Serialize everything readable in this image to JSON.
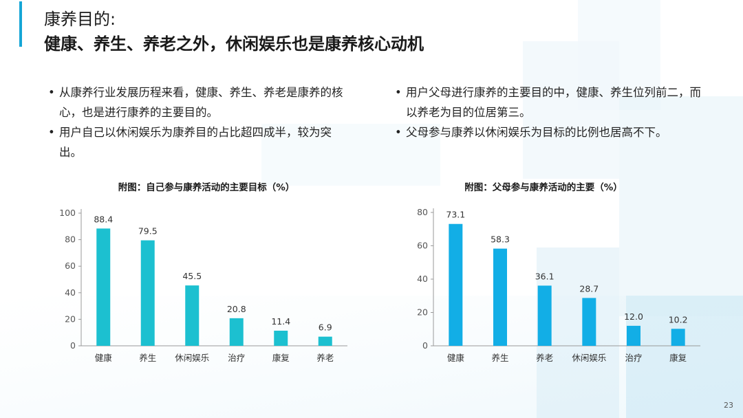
{
  "title": {
    "line1": "康养目的:",
    "line2": "健康、养生、养老之外，休闲娱乐也是康养核心动机"
  },
  "bullets_left": [
    "从康养行业发展历程来看，健康、养生、养老是康养的核心，也是进行康养的主要目的。",
    "用户自己以休闲娱乐为康养目的占比超四成半，较为突出。"
  ],
  "bullets_right": [
    "用户父母进行康养的主要目的中，健康、养生位列前二，而以养老为目的位居第三。",
    "父母参与康养以休闲娱乐为目标的比例也居高不下。"
  ],
  "page_number": "23",
  "colors": {
    "accent": "#16a6d6",
    "bar_left": "#1cc0d0",
    "bar_right": "#12aee6",
    "axis": "#999999"
  },
  "chart_data": [
    {
      "type": "bar",
      "title": "附图：自己参与康养活动的主要目标（%）",
      "categories": [
        "健康",
        "养生",
        "休闲娱乐",
        "治疗",
        "康复",
        "养老"
      ],
      "values": [
        88.4,
        79.5,
        45.5,
        20.8,
        11.4,
        6.9
      ],
      "value_labels": [
        "88.4",
        "79.5",
        "45.5",
        "20.8",
        "11.4",
        "6.9"
      ],
      "yticks": [
        0,
        20,
        40,
        60,
        80,
        100
      ],
      "ylim": [
        0,
        100
      ],
      "xlabel": "",
      "ylabel": "",
      "grid": false
    },
    {
      "type": "bar",
      "title": "附图：父母参与康养活动的主要（%）",
      "categories": [
        "健康",
        "养生",
        "养老",
        "休闲娱乐",
        "治疗",
        "康复"
      ],
      "values": [
        73.1,
        58.3,
        36.1,
        28.7,
        12.0,
        10.2
      ],
      "value_labels": [
        "73.1",
        "58.3",
        "36.1",
        "28.7",
        "12.0",
        "10.2"
      ],
      "yticks": [
        0,
        20,
        40,
        60,
        80
      ],
      "ylim": [
        0,
        80
      ],
      "xlabel": "",
      "ylabel": "",
      "grid": false
    }
  ]
}
